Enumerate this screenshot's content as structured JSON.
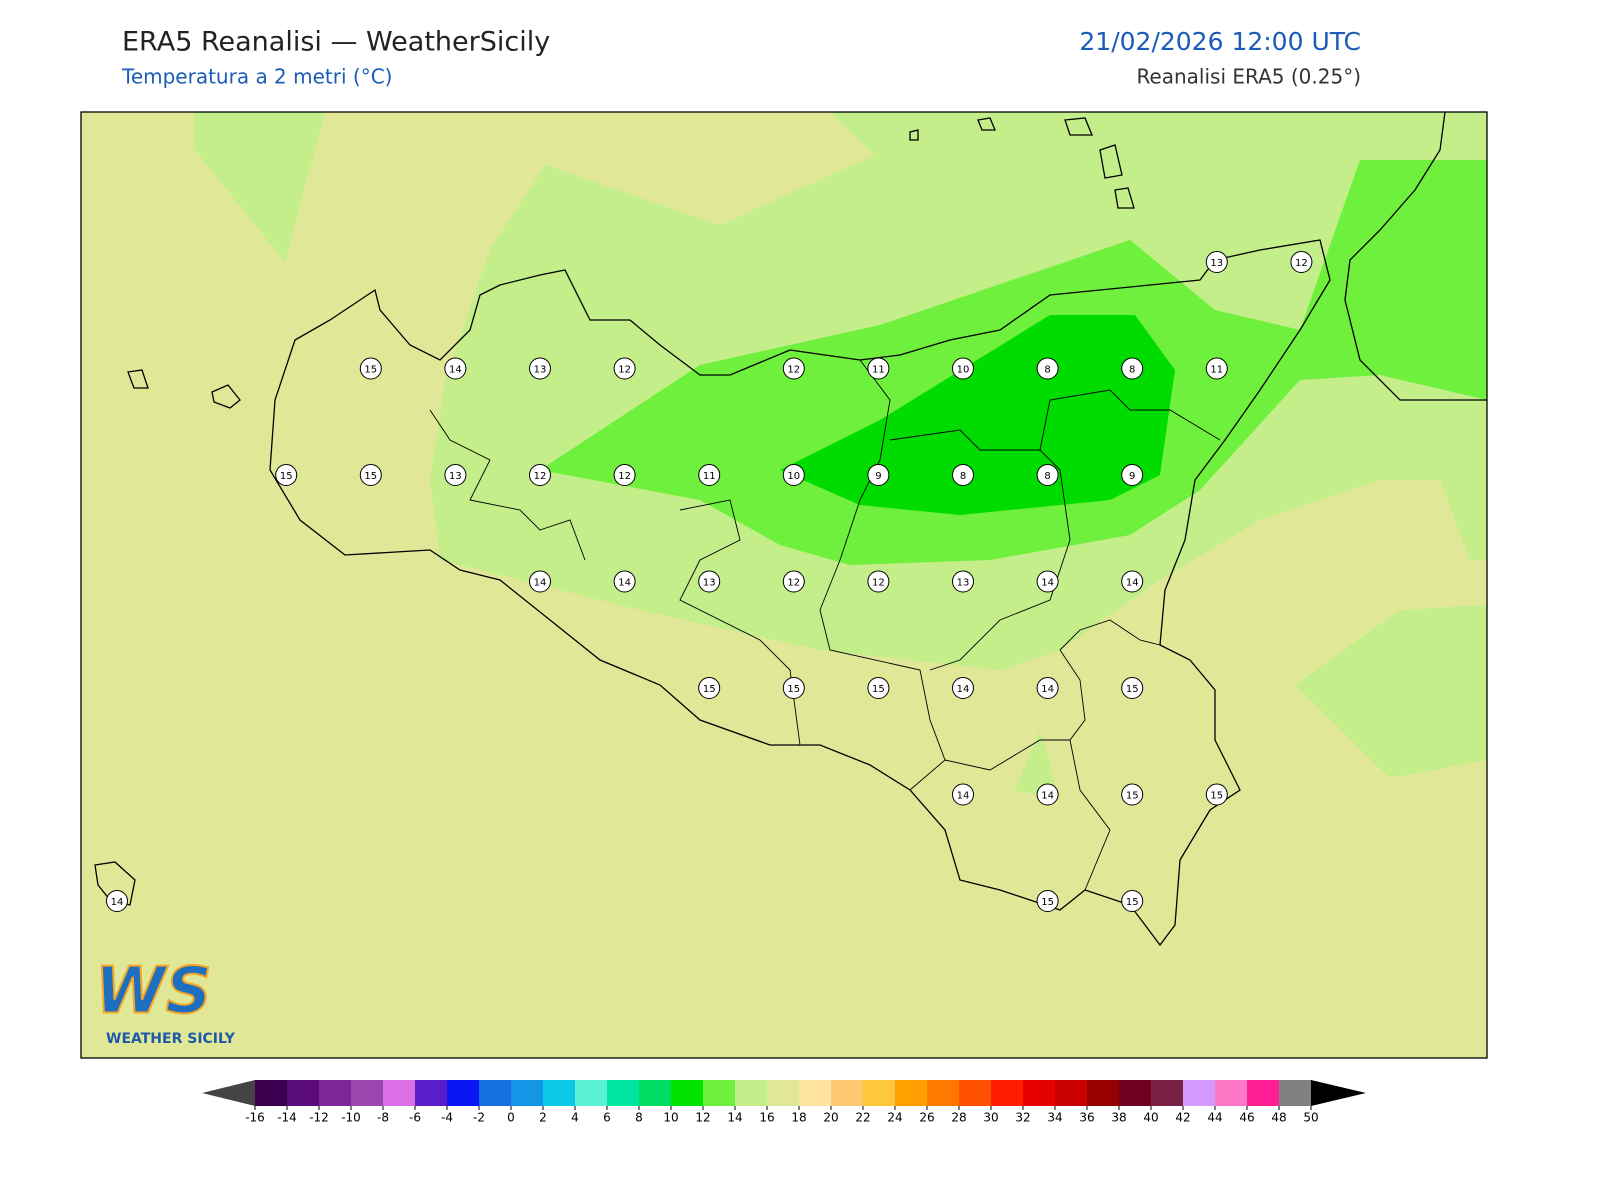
{
  "header": {
    "title": "ERA5 Reanalisi — WeatherSicily",
    "subtitle": "Temperatura a 2 metri (°C)",
    "date": "21/02/2026 12:00 UTC",
    "source": "Reanalisi ERA5 (0.25°)"
  },
  "map": {
    "stations": [
      [
        null,
        null,
        null,
        null,
        null,
        null,
        null,
        null,
        null,
        null,
        null,
        null,
        null,
        13,
        12
      ],
      [
        null,
        null,
        null,
        15,
        14,
        13,
        12,
        null,
        12,
        11,
        10,
        8,
        8,
        11,
        null
      ],
      [
        null,
        null,
        15,
        15,
        13,
        12,
        12,
        11,
        10,
        9,
        8,
        8,
        9,
        null,
        null
      ],
      [
        null,
        null,
        null,
        null,
        null,
        14,
        14,
        13,
        12,
        12,
        13,
        14,
        14,
        null,
        null
      ],
      [
        null,
        null,
        null,
        null,
        null,
        null,
        null,
        15,
        15,
        15,
        14,
        14,
        15,
        null,
        null
      ],
      [
        null,
        null,
        null,
        null,
        null,
        null,
        null,
        null,
        null,
        null,
        14,
        14,
        15,
        15,
        null
      ],
      [
        14,
        null,
        null,
        null,
        null,
        null,
        null,
        null,
        null,
        null,
        null,
        15,
        15,
        null,
        null
      ]
    ],
    "colorbar": {
      "ticks": [
        -16,
        -14,
        -12,
        -10,
        -8,
        -6,
        -4,
        -2,
        0,
        2,
        4,
        6,
        8,
        10,
        12,
        14,
        16,
        18,
        20,
        22,
        24,
        26,
        28,
        30,
        32,
        34,
        36,
        38,
        40,
        42,
        44,
        46,
        48,
        50
      ],
      "colors": [
        "#3a004f",
        "#5a0c7a",
        "#7b2896",
        "#9a48b0",
        "#dc6ee6",
        "#5a1ec8",
        "#0a14f5",
        "#1470e0",
        "#1496e6",
        "#0ac8e6",
        "#5af0d2",
        "#00e6a0",
        "#00dc64",
        "#00e400",
        "#6ef03c",
        "#c4ee8a",
        "#e0e898",
        "#ffe4a0",
        "#fcc870",
        "#ffc83c",
        "#ffa000",
        "#ff7800",
        "#ff5000",
        "#ff1e00",
        "#e60000",
        "#c80000",
        "#960000",
        "#6e0020",
        "#7a2246",
        "#d49aff",
        "#ff78c8",
        "#ff1e96",
        "#808080",
        "#3c3c3c"
      ],
      "under_color": "#444444",
      "over_color": "#000000"
    }
  },
  "logo": {
    "mark": "WS",
    "text": "WEATHER SICILY"
  }
}
